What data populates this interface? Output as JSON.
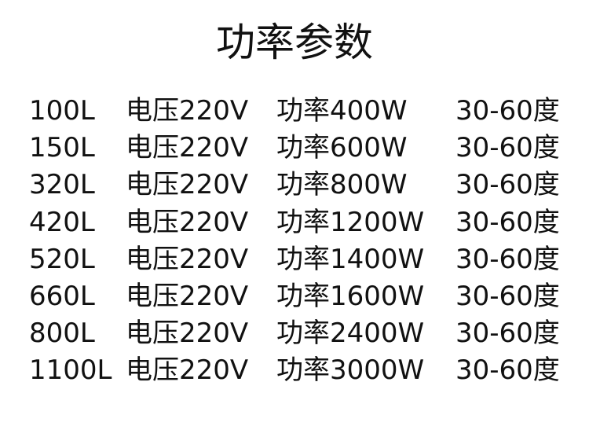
{
  "title": "功率参数",
  "rows": [
    {
      "capacity": "100L",
      "voltage": "电压220V",
      "power": "功率400W",
      "temp": "30-60度"
    },
    {
      "capacity": "150L",
      "voltage": "电压220V",
      "power": "功率600W",
      "temp": "30-60度"
    },
    {
      "capacity": "320L",
      "voltage": "电压220V",
      "power": "功率800W",
      "temp": "30-60度"
    },
    {
      "capacity": "420L",
      "voltage": "电压220V",
      "power": "功率1200W",
      "temp": "30-60度"
    },
    {
      "capacity": "520L",
      "voltage": "电压220V",
      "power": "功率1400W",
      "temp": "30-60度"
    },
    {
      "capacity": "660L",
      "voltage": "电压220V",
      "power": "功率1600W",
      "temp": "30-60度"
    },
    {
      "capacity": "800L",
      "voltage": "电压220V",
      "power": "功率2400W",
      "temp": "30-60度"
    },
    {
      "capacity": "1100L",
      "voltage": "电压220V",
      "power": "功率3000W",
      "temp": "30-60度"
    }
  ]
}
